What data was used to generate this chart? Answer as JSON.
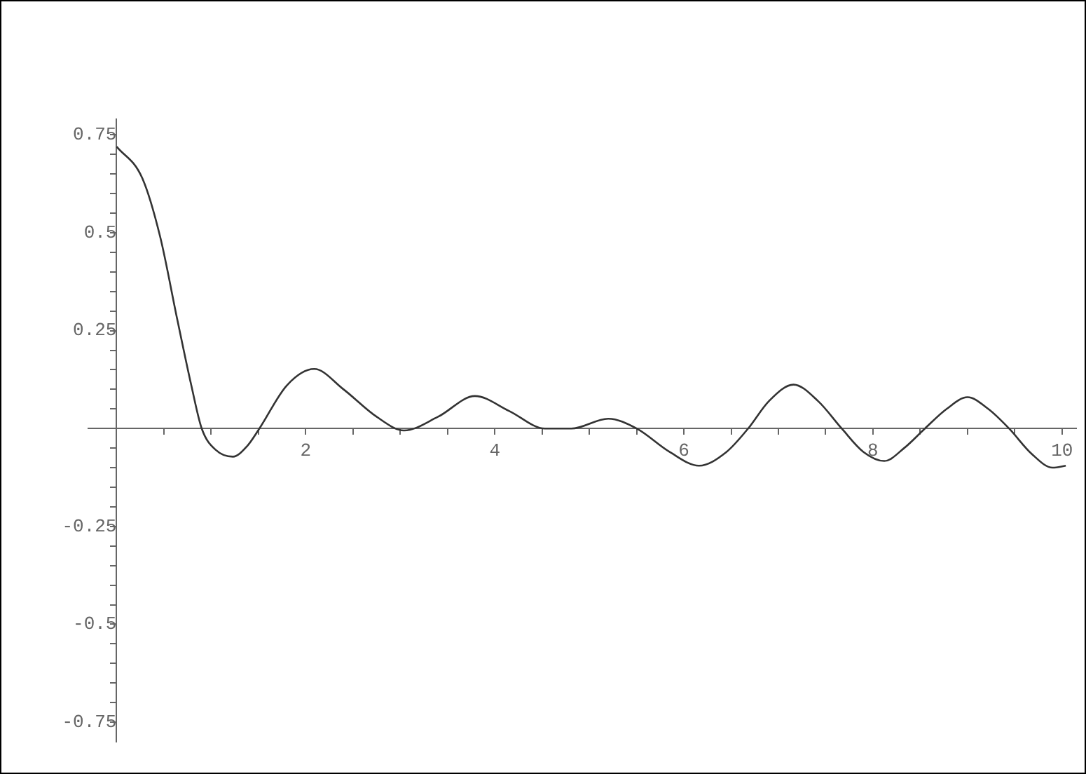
{
  "chart_data": {
    "type": "line",
    "x": [
      0,
      0.27,
      0.46,
      0.64,
      0.79,
      0.9,
      1.05,
      1.23,
      1.38,
      1.51,
      1.8,
      2.09,
      2.4,
      2.75,
      3.04,
      3.4,
      3.79,
      4.15,
      4.53,
      4.81,
      5.2,
      5.5,
      5.85,
      6.16,
      6.45,
      6.68,
      6.9,
      7.16,
      7.42,
      7.67,
      7.9,
      8.12,
      8.33,
      8.55,
      8.78,
      9.0,
      9.22,
      9.44,
      9.68,
      9.9,
      10.04
    ],
    "series": [
      {
        "color": "#333333",
        "values": [
          0.72,
          0.64,
          0.49,
          0.28,
          0.11,
          0,
          -0.055,
          -0.072,
          -0.045,
          0,
          0.11,
          0.152,
          0.1,
          0.03,
          -0.005,
          0.03,
          0.083,
          0.045,
          0,
          0,
          0.025,
          0,
          -0.06,
          -0.095,
          -0.06,
          0,
          0.07,
          0.112,
          0.07,
          0,
          -0.06,
          -0.083,
          -0.05,
          0,
          0.05,
          0.08,
          0.05,
          0,
          -0.065,
          -0.1,
          -0.095
        ]
      }
    ],
    "xlim": [
      -0.3,
      10.15
    ],
    "ylim": [
      -0.8,
      0.79
    ],
    "xticks": [
      {
        "value": 0.5,
        "label": null
      },
      {
        "value": 1,
        "label": null
      },
      {
        "value": 1.5,
        "label": null
      },
      2,
      {
        "value": 2.5,
        "label": null
      },
      {
        "value": 3,
        "label": null
      },
      {
        "value": 3.5,
        "label": null
      },
      4,
      {
        "value": 4.5,
        "label": null
      },
      {
        "value": 5,
        "label": null
      },
      {
        "value": 5.5,
        "label": null
      },
      6,
      {
        "value": 6.5,
        "label": null
      },
      {
        "value": 7,
        "label": null
      },
      {
        "value": 7.5,
        "label": null
      },
      8,
      {
        "value": 8.5,
        "label": null
      },
      {
        "value": 9,
        "label": null
      },
      {
        "value": 9.5,
        "label": null
      },
      10
    ],
    "yticks": [
      -0.75,
      {
        "value": -0.7,
        "label": null
      },
      {
        "value": -0.65,
        "label": null
      },
      {
        "value": -0.6,
        "label": null
      },
      {
        "value": -0.55,
        "label": null
      },
      -0.5,
      {
        "value": -0.45,
        "label": null
      },
      {
        "value": -0.4,
        "label": null
      },
      {
        "value": -0.35,
        "label": null
      },
      {
        "value": -0.3,
        "label": null
      },
      -0.25,
      {
        "value": -0.2,
        "label": null
      },
      {
        "value": -0.15,
        "label": null
      },
      {
        "value": -0.1,
        "label": null
      },
      {
        "value": -0.05,
        "label": null
      },
      {
        "value": 0.05,
        "label": null
      },
      {
        "value": 0.1,
        "label": null
      },
      {
        "value": 0.15,
        "label": null
      },
      {
        "value": 0.2,
        "label": null
      },
      0.25,
      {
        "value": 0.3,
        "label": null
      },
      {
        "value": 0.35,
        "label": null
      },
      {
        "value": 0.4,
        "label": null
      },
      {
        "value": 0.45,
        "label": null
      },
      0.5,
      {
        "value": 0.55,
        "label": null
      },
      {
        "value": 0.6,
        "label": null
      },
      {
        "value": 0.65,
        "label": null
      },
      {
        "value": 0.7,
        "label": null
      },
      0.75
    ],
    "grid": false,
    "legend": false,
    "marker": "none",
    "line_style": "solid"
  }
}
